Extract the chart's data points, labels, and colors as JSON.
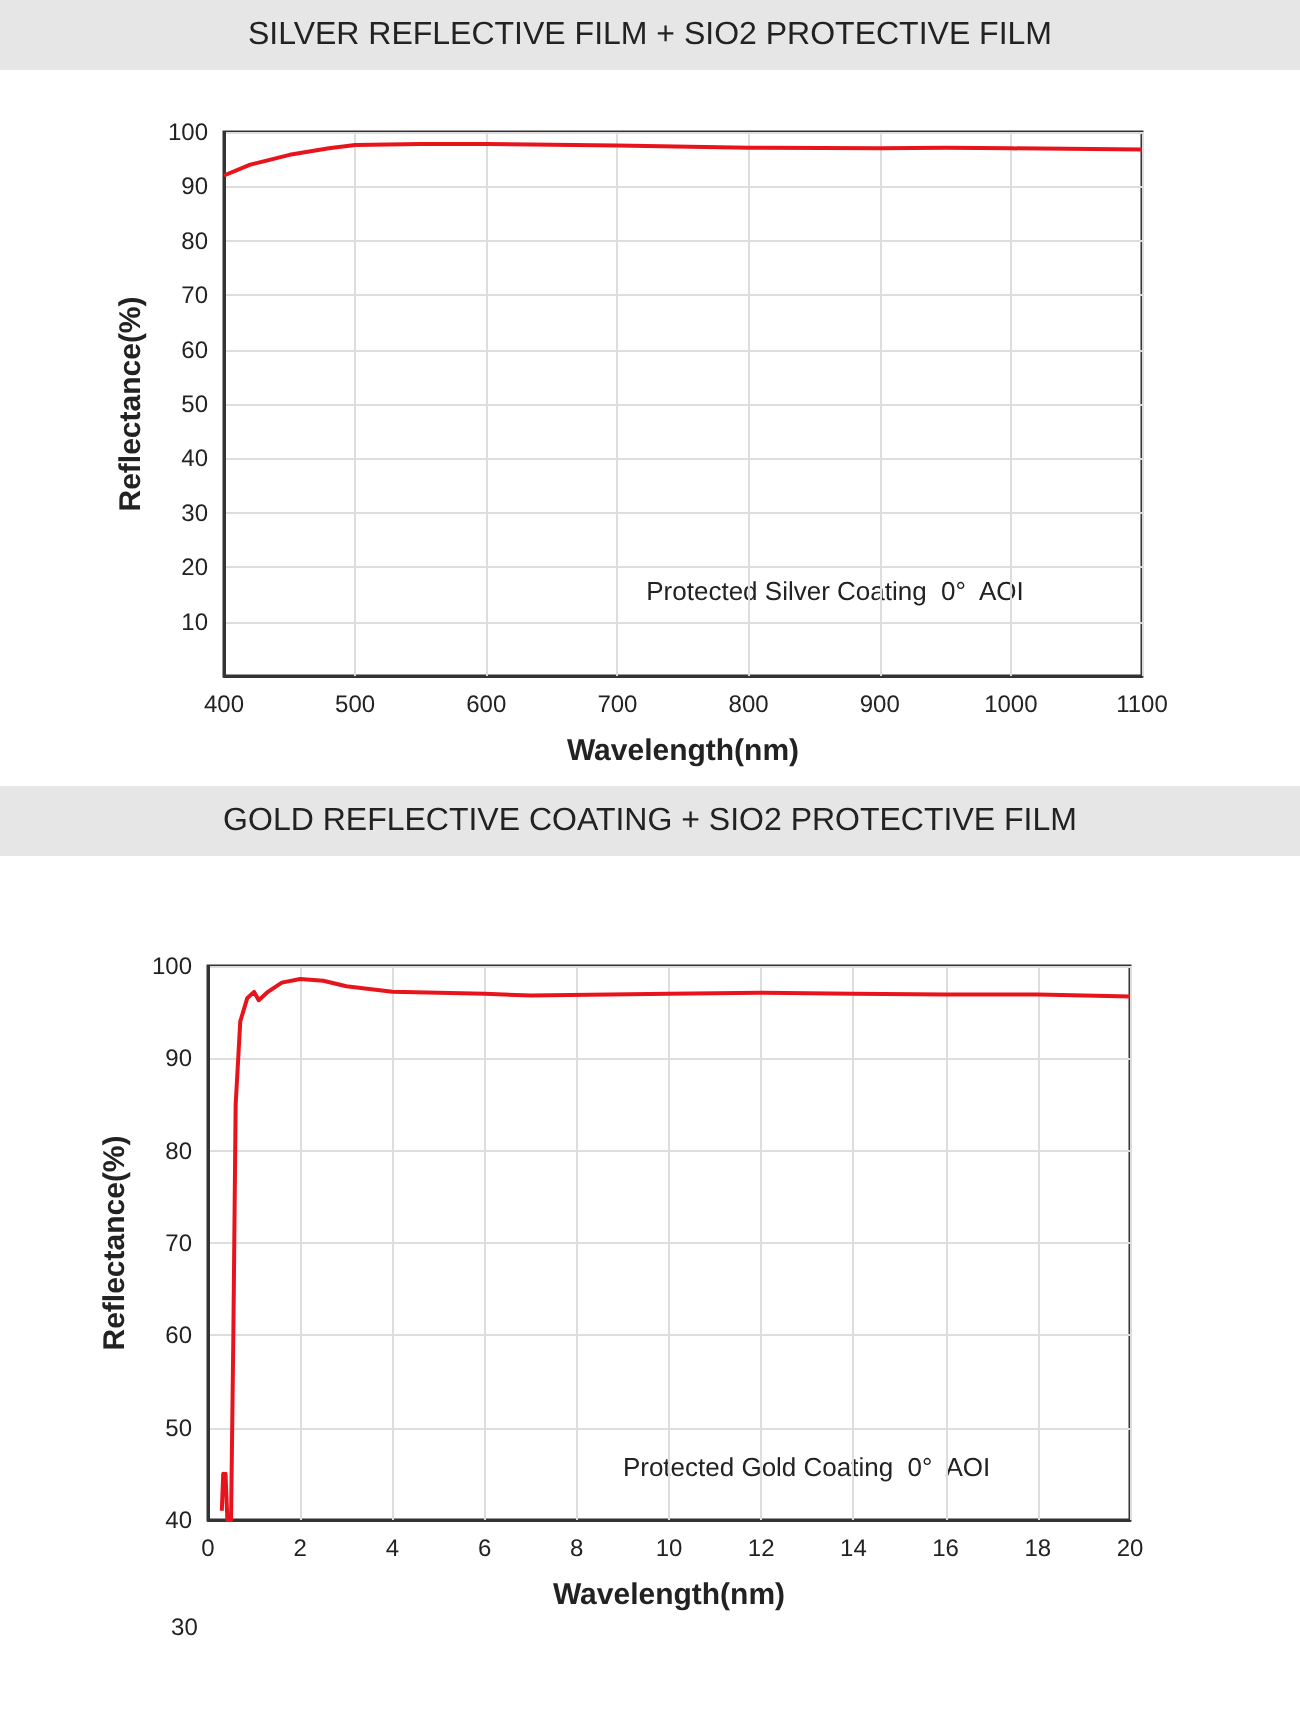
{
  "chart_data": [
    {
      "type": "line",
      "title": "SILVER REFLECTIVE FILM + SIO2 PROTECTIVE FILM",
      "xlabel": "Wavelength(nm)",
      "ylabel": "Reflectance(%)",
      "series": [
        {
          "color": "#e8141c",
          "x": [
            400,
            420,
            450,
            480,
            500,
            550,
            600,
            700,
            800,
            900,
            950,
            1000,
            1100
          ],
          "values": [
            92,
            94,
            95.8,
            97,
            97.6,
            97.8,
            97.8,
            97.5,
            97.1,
            97,
            97.1,
            97,
            96.8
          ]
        }
      ],
      "xlim": [
        400,
        1100
      ],
      "xticks": [
        400,
        500,
        600,
        700,
        800,
        900,
        1000,
        1100
      ],
      "ylim": [
        0,
        100
      ],
      "yticks": [
        10,
        20,
        30,
        40,
        50,
        60,
        70,
        80,
        90,
        100
      ],
      "grid": true,
      "marker": "none",
      "line_style": "solid",
      "annotations": [
        "Protected Silver Coating  0°  AOI"
      ]
    },
    {
      "type": "line",
      "title": "GOLD REFLECTIVE COATING + SIO2 PROTECTIVE FILM",
      "xlabel": "Wavelength(nm)",
      "ylabel": "Reflectance(%)",
      "series": [
        {
          "color": "#e8141c",
          "x": [
            0.3,
            0.33,
            0.36,
            0.38,
            0.42,
            0.5,
            0.55,
            0.6,
            0.7,
            0.85,
            1.0,
            1.1,
            1.3,
            1.6,
            2,
            2.5,
            3,
            4,
            6,
            7,
            10,
            12,
            14,
            16,
            18,
            20
          ],
          "values": [
            41,
            45,
            44,
            45,
            40,
            40,
            60,
            85,
            94,
            96.5,
            97.2,
            96.3,
            97.2,
            98.2,
            98.6,
            98.4,
            97.8,
            97.2,
            97,
            96.8,
            97,
            97.1,
            97,
            96.9,
            96.9,
            96.7
          ]
        }
      ],
      "xlim": [
        0,
        20
      ],
      "xticks": [
        0,
        2,
        4,
        6,
        8,
        10,
        12,
        14,
        16,
        18,
        20
      ],
      "ylim": [
        40,
        100
      ],
      "yticks": [
        40,
        50,
        60,
        70,
        80,
        90,
        100
      ],
      "grid": true,
      "marker": "none",
      "line_style": "solid",
      "annotations": [
        "Protected Gold Coating  0°  AOI",
        "30"
      ]
    }
  ]
}
